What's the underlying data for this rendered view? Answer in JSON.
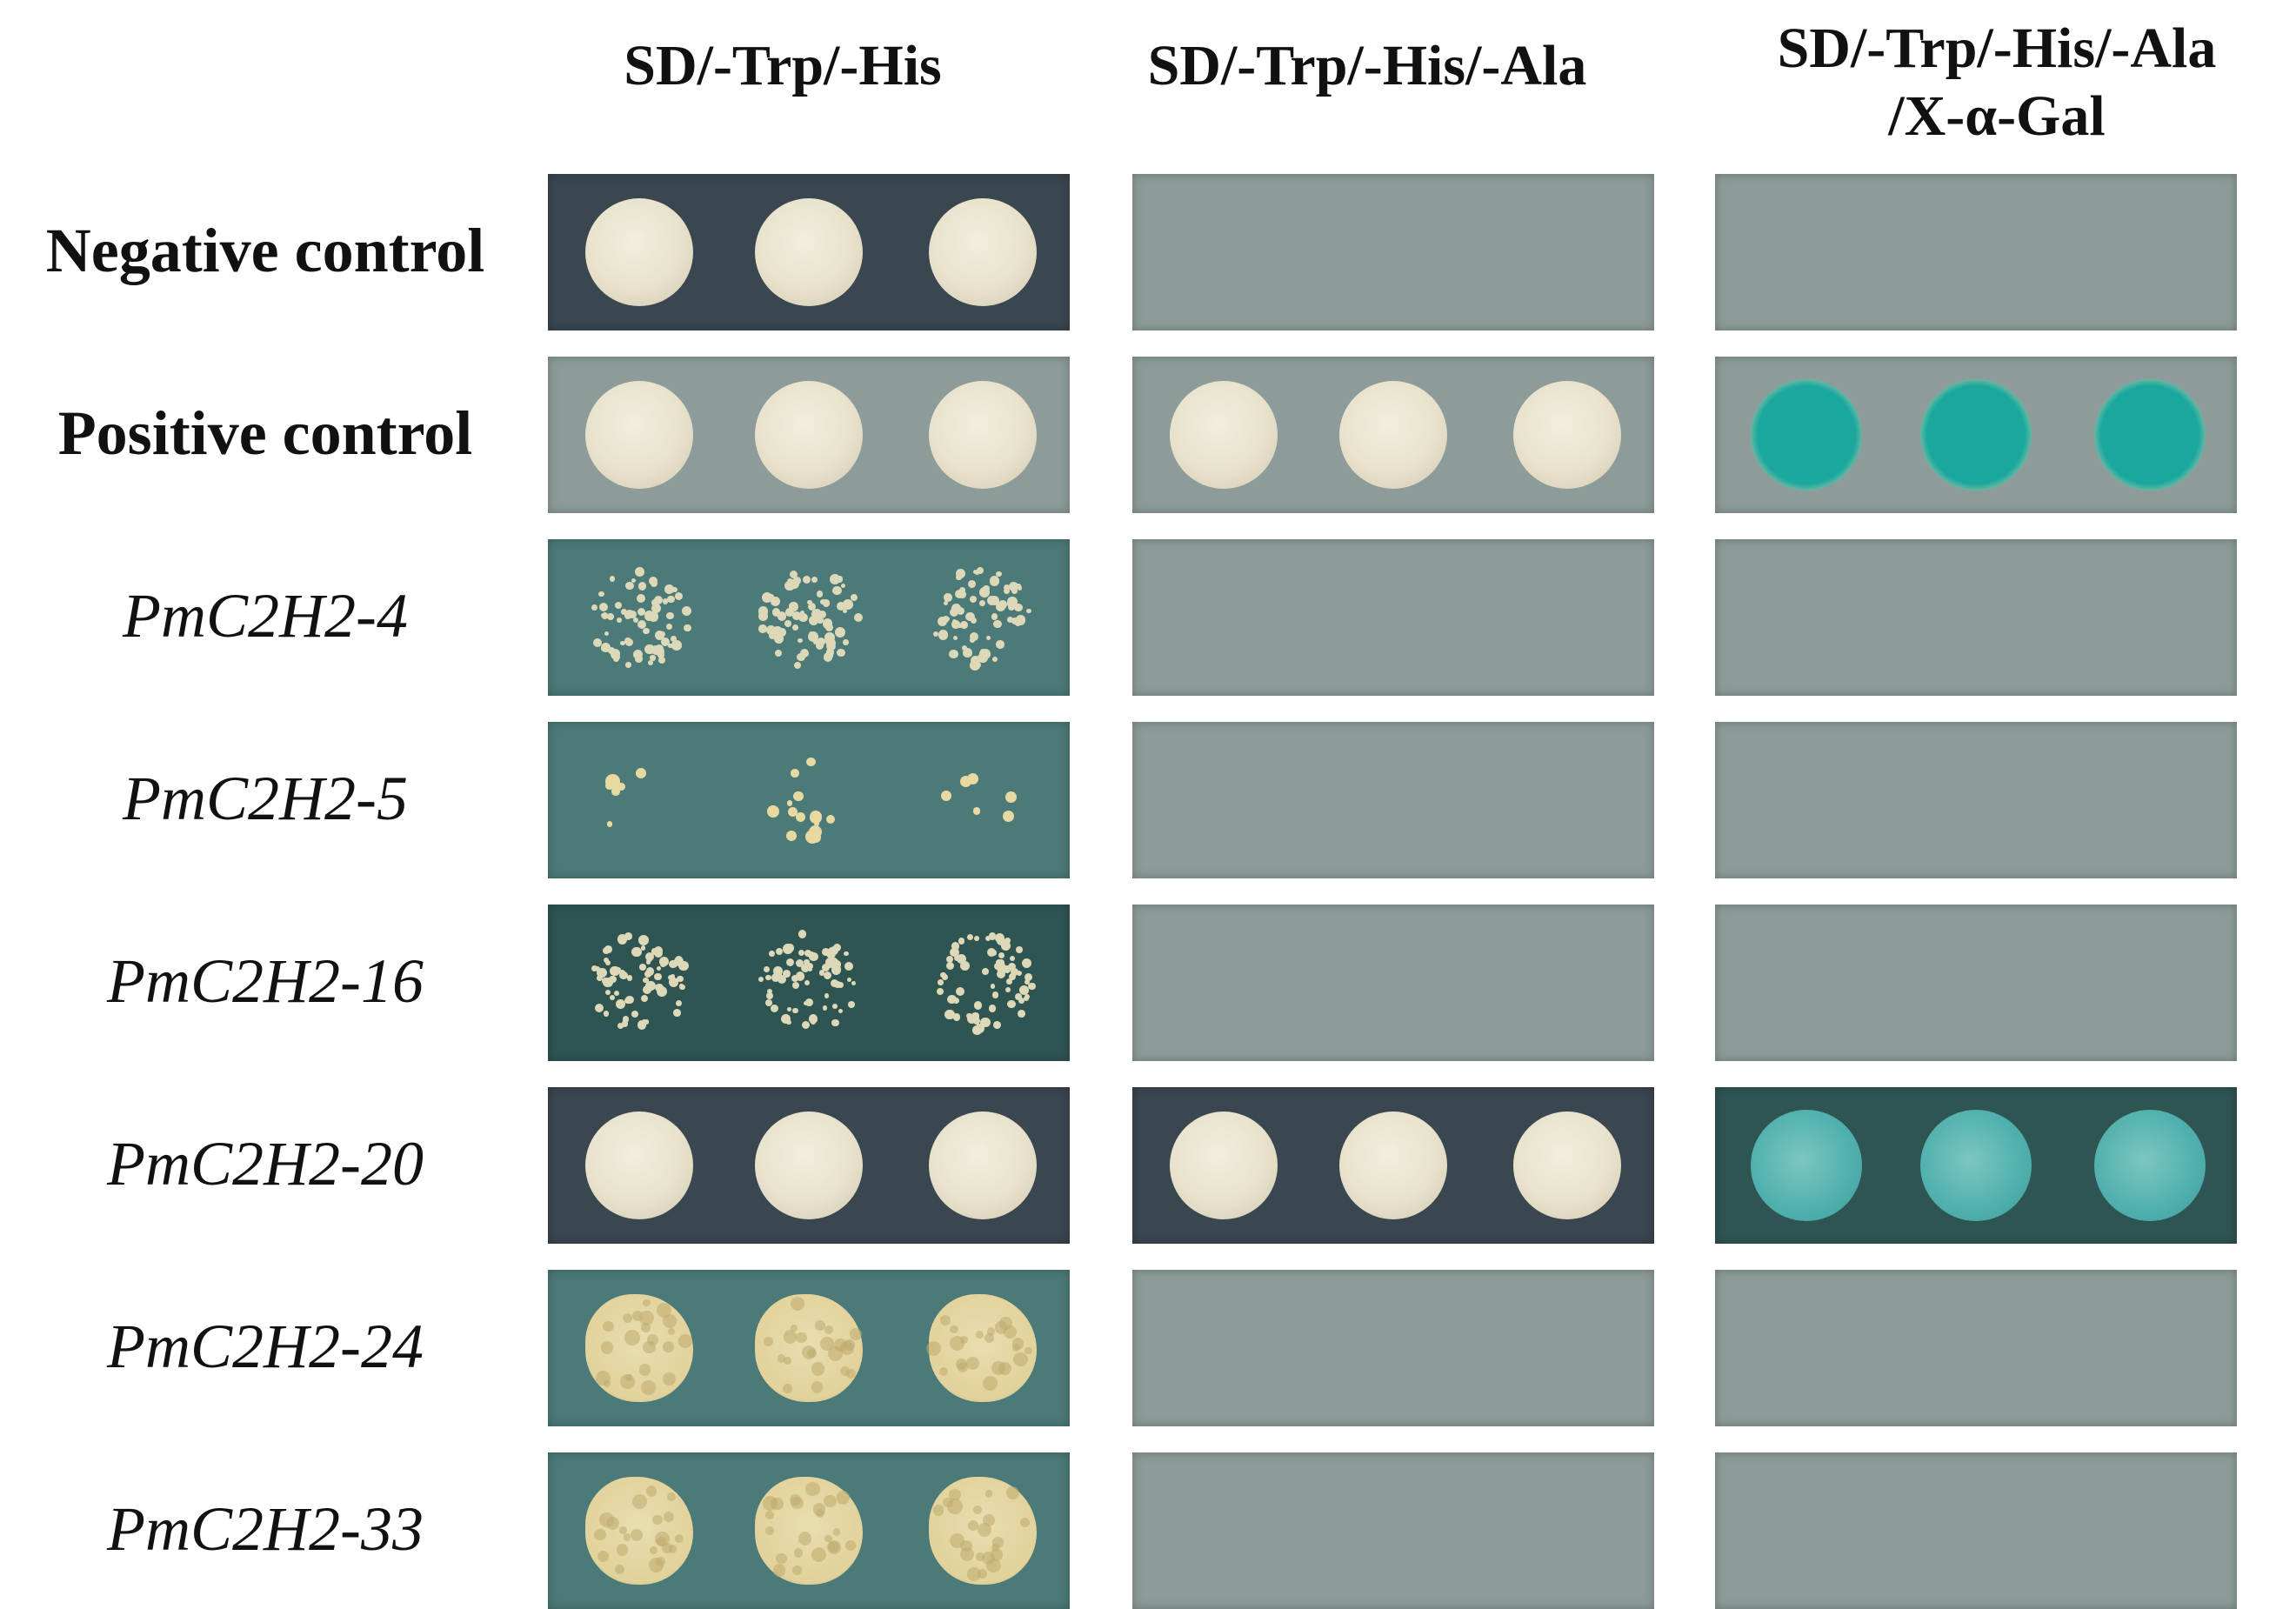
{
  "columns": [
    {
      "header": [
        "SD/-Trp/-His"
      ]
    },
    {
      "header": [
        "SD/-Trp/-His/-Ala"
      ]
    },
    {
      "header": [
        "SD/-Trp/-His/-Ala",
        "/X-α-Gal"
      ]
    }
  ],
  "rows": [
    {
      "label": "Negative control",
      "style": "bold",
      "growth": [
        "full",
        "none",
        "none"
      ],
      "plate_tone": [
        "dark",
        "light",
        "light"
      ]
    },
    {
      "label": "Positive control",
      "style": "bold",
      "growth": [
        "full",
        "full",
        "blue"
      ],
      "plate_tone": [
        "light",
        "light",
        "light"
      ]
    },
    {
      "label": "PmC2H2-4",
      "style": "italic",
      "growth": [
        "speckled",
        "none",
        "none"
      ],
      "plate_tone": [
        "teal",
        "light",
        "light"
      ]
    },
    {
      "label": "PmC2H2-5",
      "style": "italic",
      "growth": [
        "sparse",
        "none",
        "none"
      ],
      "plate_tone": [
        "teal",
        "light",
        "light"
      ]
    },
    {
      "label": "PmC2H2-16",
      "style": "italic",
      "growth": [
        "speckled",
        "none",
        "none"
      ],
      "plate_tone": [
        "dark-teal",
        "light",
        "light"
      ]
    },
    {
      "label": "PmC2H2-20",
      "style": "italic",
      "growth": [
        "full",
        "full",
        "blue-light"
      ],
      "plate_tone": [
        "dark",
        "dark",
        "dark-teal"
      ]
    },
    {
      "label": "PmC2H2-24",
      "style": "italic",
      "growth": [
        "lumpy",
        "none",
        "none"
      ],
      "plate_tone": [
        "teal",
        "light",
        "light"
      ]
    },
    {
      "label": "PmC2H2-33",
      "style": "italic",
      "growth": [
        "lumpy",
        "none",
        "none"
      ],
      "plate_tone": [
        "teal",
        "light",
        "light"
      ]
    }
  ],
  "colors": {
    "dark": "#3a4650",
    "dark-teal": "#2f5553",
    "teal": "#4b7a78",
    "light": "#8d9c9a",
    "colony": "#e8e2cc",
    "colony_yellow": "#e9ddb0",
    "blue": "#1aa79e",
    "blue_light": "#4fb0ad"
  }
}
